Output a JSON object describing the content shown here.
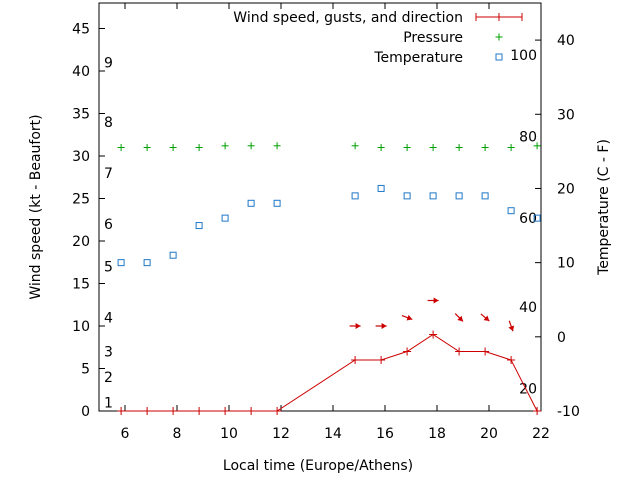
{
  "chart_data": {
    "type": "line",
    "xlabel": "Local time (Europe/Athens)",
    "ylabel": "Wind speed (kt - Beaufort)",
    "y2label": "Temperature (C - F)",
    "xlim": [
      5,
      22
    ],
    "ylim": [
      0,
      48
    ],
    "y2lim": [
      -10,
      45
    ],
    "x_ticks": [
      6,
      8,
      10,
      12,
      14,
      16,
      18,
      20,
      22
    ],
    "y_ticks": [
      0,
      5,
      10,
      15,
      20,
      25,
      30,
      35,
      40,
      45
    ],
    "y2_ticks": [
      -10,
      0,
      10,
      20,
      30,
      40
    ],
    "beaufort_labels": [
      {
        "label": "1",
        "at": 1
      },
      {
        "label": "2",
        "at": 4
      },
      {
        "label": "3",
        "at": 7
      },
      {
        "label": "4",
        "at": 11
      },
      {
        "label": "5",
        "at": 17
      },
      {
        "label": "6",
        "at": 22
      },
      {
        "label": "7",
        "at": 28
      },
      {
        "label": "8",
        "at": 34
      },
      {
        "label": "9",
        "at": 41
      }
    ],
    "fahrenheit_labels": [
      {
        "label": "20",
        "at": -7
      },
      {
        "label": "40",
        "at": 4
      },
      {
        "label": "60",
        "at": 16
      },
      {
        "label": "80",
        "at": 27
      },
      {
        "label": "100",
        "at": 38
      }
    ],
    "legend_position": "top-right",
    "series": [
      {
        "name": "Wind speed, gusts, and direction",
        "marker": "line-plus",
        "color": "#cc0000",
        "x": [
          5.85,
          6.85,
          7.85,
          8.85,
          9.85,
          10.85,
          11.85,
          14.85,
          15.85,
          16.85,
          17.85,
          18.85,
          19.85,
          20.85,
          21.85
        ],
        "values": [
          0,
          0,
          0,
          0,
          0,
          0,
          0,
          6,
          6,
          7,
          9,
          7,
          7,
          6,
          0
        ]
      },
      {
        "name": "Pressure",
        "marker": "plus",
        "color": "#00a000",
        "x": [
          5.85,
          6.85,
          7.85,
          8.85,
          9.85,
          10.85,
          11.85,
          14.85,
          15.85,
          16.85,
          17.85,
          18.85,
          19.85,
          20.85,
          21.85
        ],
        "values": [
          31,
          31,
          31,
          31,
          31.2,
          31.2,
          31.2,
          31.2,
          31,
          31,
          31,
          31,
          31,
          31,
          31.2
        ]
      },
      {
        "name": "Temperature",
        "marker": "square",
        "color": "#1f78c8",
        "axis": "y2",
        "x": [
          5.85,
          6.85,
          7.85,
          8.85,
          9.85,
          10.85,
          11.85,
          14.85,
          15.85,
          16.85,
          17.85,
          18.85,
          19.85,
          20.85,
          21.85
        ],
        "values": [
          10,
          10,
          11,
          15,
          16,
          18,
          18,
          19,
          20,
          19,
          19,
          19,
          19,
          17,
          16
        ]
      }
    ],
    "wind_direction_arrows": {
      "color": "#cc0000",
      "x": [
        14.85,
        15.85,
        16.85,
        17.85,
        18.85,
        19.85,
        20.85
      ],
      "y": [
        10,
        10,
        11,
        13,
        11,
        11,
        10
      ],
      "angle_deg": [
        0,
        0,
        20,
        0,
        45,
        40,
        70
      ]
    }
  }
}
